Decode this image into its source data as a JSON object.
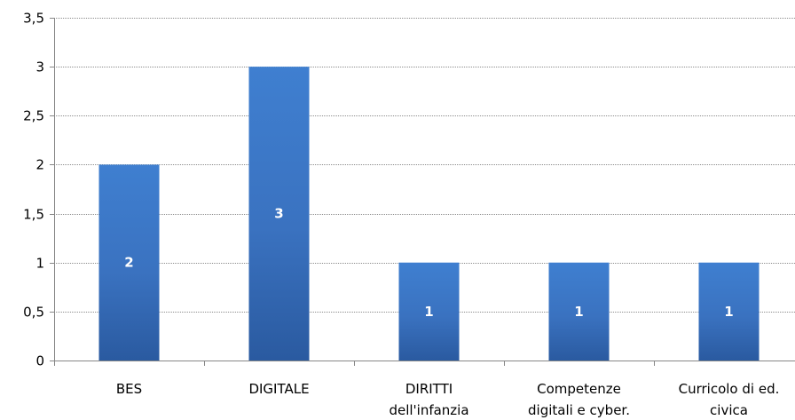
{
  "chart_data": {
    "type": "bar",
    "categories": [
      [
        "BES"
      ],
      [
        "DIGITALE"
      ],
      [
        "DIRITTI",
        "dell'infanzia"
      ],
      [
        "Competenze",
        "digitali e cyber."
      ],
      [
        "Curricolo di ed.",
        "civica"
      ]
    ],
    "values": [
      2,
      3,
      1,
      1,
      1
    ],
    "data_labels": [
      "2",
      "3",
      "1",
      "1",
      "1"
    ],
    "y_ticks": [
      {
        "value": 0,
        "label": "0"
      },
      {
        "value": 0.5,
        "label": "0,5"
      },
      {
        "value": 1,
        "label": "1"
      },
      {
        "value": 1.5,
        "label": "1,5"
      },
      {
        "value": 2,
        "label": "2"
      },
      {
        "value": 2.5,
        "label": "2,5"
      },
      {
        "value": 3,
        "label": "3"
      },
      {
        "value": 3.5,
        "label": "3,5"
      }
    ],
    "ylim": [
      0,
      3.5
    ],
    "grid": true,
    "legend": false,
    "title": "",
    "xlabel": "",
    "ylabel": "",
    "colors": {
      "bar_top": "#3f7fd0",
      "bar_mid": "#3a72c0",
      "bar_bottom": "#2a5aa0",
      "grid": "#8c8c8c",
      "axis": "#868686",
      "data_label": "#ffffff"
    }
  }
}
